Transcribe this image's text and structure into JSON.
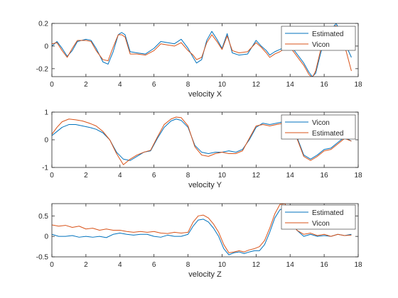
{
  "figure": {
    "background": "#ffffff"
  },
  "chart_data": [
    {
      "type": "line",
      "title": "",
      "xlabel": "velocity X",
      "ylabel": "",
      "xlim": [
        0,
        18
      ],
      "ylim": [
        -0.27,
        0.2
      ],
      "xticks": [
        0,
        2,
        4,
        6,
        8,
        10,
        12,
        14,
        16,
        18
      ],
      "yticks": [
        -0.2,
        0,
        0.2
      ],
      "ytick_labels": [
        "-0.2",
        "0",
        "0.2"
      ],
      "grid": false,
      "legend": {
        "position": "top-right",
        "entries": [
          "Estimated",
          "Vicon"
        ]
      },
      "series": [
        {
          "name": "Estimated",
          "color": "#0072BD",
          "x": [
            0,
            0.3,
            0.6,
            0.9,
            1.2,
            1.5,
            2,
            2.3,
            2.6,
            3.0,
            3.3,
            3.6,
            3.9,
            4.1,
            4.3,
            4.6,
            5,
            5.5,
            6,
            6.4,
            6.8,
            7.2,
            7.6,
            8.0,
            8.3,
            8.5,
            8.8,
            9.1,
            9.4,
            9.7,
            10.0,
            10.3,
            10.6,
            11,
            11.5,
            12,
            12.3,
            12.6,
            12.8,
            13.1,
            13.4,
            13.8,
            14.1,
            14.4,
            14.8,
            15.1,
            15.3,
            15.5,
            15.8,
            16.1,
            16.4,
            16.7,
            17.0,
            17.3,
            17.6
          ],
          "y": [
            0.0,
            0.04,
            -0.02,
            -0.09,
            -0.04,
            0.04,
            0.06,
            0.05,
            -0.02,
            -0.14,
            -0.16,
            -0.05,
            0.1,
            0.12,
            0.1,
            -0.05,
            -0.06,
            -0.07,
            -0.02,
            0.04,
            0.03,
            0.02,
            0.06,
            -0.02,
            -0.1,
            -0.15,
            -0.12,
            0.05,
            0.13,
            0.06,
            -0.02,
            0.11,
            -0.06,
            -0.08,
            -0.07,
            0.05,
            0.0,
            -0.04,
            -0.08,
            -0.05,
            -0.03,
            0.0,
            -0.01,
            -0.07,
            -0.15,
            -0.23,
            -0.27,
            -0.24,
            -0.06,
            0.08,
            0.14,
            0.2,
            0.12,
            0.0,
            -0.1
          ]
        },
        {
          "name": "Vicon",
          "color": "#D95319",
          "x": [
            0,
            0.3,
            0.6,
            0.9,
            1.2,
            1.5,
            2,
            2.3,
            2.6,
            3.0,
            3.3,
            3.6,
            3.9,
            4.1,
            4.3,
            4.6,
            5,
            5.5,
            6,
            6.4,
            6.8,
            7.2,
            7.6,
            8.0,
            8.3,
            8.5,
            8.8,
            9.1,
            9.4,
            9.7,
            10.0,
            10.3,
            10.6,
            11,
            11.5,
            12,
            12.3,
            12.6,
            12.8,
            13.1,
            13.4,
            13.8,
            14.1,
            14.4,
            14.8,
            15.1,
            15.3,
            15.5,
            15.8,
            16.1,
            16.4,
            16.7,
            17.0,
            17.3,
            17.6
          ],
          "y": [
            0.02,
            0.03,
            -0.04,
            -0.1,
            -0.02,
            0.05,
            0.05,
            0.04,
            -0.04,
            -0.12,
            -0.13,
            -0.01,
            0.1,
            0.1,
            0.08,
            -0.07,
            -0.07,
            -0.08,
            -0.04,
            0.02,
            0.01,
            0.0,
            0.03,
            -0.04,
            -0.08,
            -0.12,
            -0.1,
            0.03,
            0.1,
            0.04,
            -0.03,
            0.09,
            -0.04,
            -0.06,
            -0.05,
            0.03,
            -0.01,
            -0.06,
            -0.1,
            -0.07,
            -0.05,
            -0.01,
            -0.03,
            -0.09,
            -0.17,
            -0.25,
            -0.28,
            -0.22,
            -0.03,
            0.1,
            0.16,
            0.18,
            0.08,
            -0.05,
            -0.22
          ]
        }
      ]
    },
    {
      "type": "line",
      "title": "",
      "xlabel": "velocity Y",
      "ylabel": "",
      "xlim": [
        0,
        18
      ],
      "ylim": [
        -1,
        1
      ],
      "xticks": [
        0,
        2,
        4,
        6,
        8,
        10,
        12,
        14,
        16,
        18
      ],
      "yticks": [
        -1,
        0,
        1
      ],
      "ytick_labels": [
        "-1",
        "0",
        "1"
      ],
      "grid": false,
      "legend": {
        "position": "top-right",
        "entries": [
          "Vicon",
          "Estimated"
        ]
      },
      "series": [
        {
          "name": "Vicon",
          "color": "#0072BD",
          "x": [
            0,
            0.3,
            0.6,
            1.0,
            1.4,
            1.8,
            2.2,
            2.6,
            3.0,
            3.4,
            3.8,
            4.2,
            4.6,
            5.0,
            5.4,
            5.8,
            6.2,
            6.6,
            7.0,
            7.3,
            7.6,
            8.0,
            8.4,
            8.8,
            9.2,
            9.6,
            10.0,
            10.4,
            10.8,
            11.2,
            11.6,
            12.0,
            12.4,
            12.8,
            13.2,
            13.6,
            14.0,
            14.4,
            14.8,
            15.2,
            15.6,
            16.0,
            16.4,
            16.8,
            17.2,
            17.6
          ],
          "y": [
            0.15,
            0.3,
            0.45,
            0.55,
            0.55,
            0.5,
            0.45,
            0.38,
            0.25,
            0.0,
            -0.45,
            -0.7,
            -0.75,
            -0.6,
            -0.45,
            -0.4,
            0.05,
            0.45,
            0.68,
            0.75,
            0.7,
            0.45,
            -0.2,
            -0.45,
            -0.5,
            -0.45,
            -0.45,
            -0.4,
            -0.45,
            -0.35,
            0.0,
            0.45,
            0.6,
            0.55,
            0.6,
            0.65,
            0.55,
            0.1,
            -0.55,
            -0.7,
            -0.55,
            -0.35,
            -0.3,
            -0.1,
            0.1,
            -0.05
          ]
        },
        {
          "name": "Estimated",
          "color": "#D95319",
          "x": [
            0,
            0.3,
            0.6,
            1.0,
            1.4,
            1.8,
            2.2,
            2.6,
            3.0,
            3.4,
            3.8,
            4.2,
            4.6,
            5.0,
            5.4,
            5.8,
            6.2,
            6.6,
            7.0,
            7.3,
            7.6,
            8.0,
            8.4,
            8.8,
            9.2,
            9.6,
            10.0,
            10.4,
            10.8,
            11.2,
            11.6,
            12.0,
            12.4,
            12.8,
            13.2,
            13.6,
            14.0,
            14.4,
            14.8,
            15.2,
            15.6,
            16.0,
            16.4,
            16.8,
            17.2,
            17.6
          ],
          "y": [
            0.2,
            0.45,
            0.65,
            0.75,
            0.72,
            0.68,
            0.6,
            0.5,
            0.3,
            0.0,
            -0.5,
            -0.9,
            -0.7,
            -0.55,
            -0.45,
            -0.38,
            0.1,
            0.55,
            0.75,
            0.82,
            0.8,
            0.5,
            -0.25,
            -0.55,
            -0.6,
            -0.5,
            -0.45,
            -0.5,
            -0.5,
            -0.4,
            0.05,
            0.5,
            0.55,
            0.5,
            0.55,
            0.6,
            0.5,
            0.05,
            -0.6,
            -0.75,
            -0.6,
            -0.4,
            -0.35,
            -0.15,
            0.05,
            -0.05
          ]
        }
      ]
    },
    {
      "type": "line",
      "title": "",
      "xlabel": "velocity Z",
      "ylabel": "",
      "xlim": [
        0,
        18
      ],
      "ylim": [
        -0.5,
        0.8
      ],
      "xticks": [
        0,
        2,
        4,
        6,
        8,
        10,
        12,
        14,
        16,
        18
      ],
      "yticks": [
        -0.5,
        0,
        0.5
      ],
      "ytick_labels": [
        "-0.5",
        "0",
        "0.5"
      ],
      "grid": false,
      "legend": {
        "position": "top-right",
        "entries": [
          "Estimated",
          "Vicon"
        ]
      },
      "series": [
        {
          "name": "Estimated",
          "color": "#0072BD",
          "x": [
            0,
            0.4,
            0.8,
            1.2,
            1.6,
            2.0,
            2.4,
            2.8,
            3.2,
            3.6,
            4.0,
            4.4,
            4.8,
            5.2,
            5.6,
            6.0,
            6.4,
            6.8,
            7.2,
            7.6,
            8.0,
            8.3,
            8.6,
            8.9,
            9.2,
            9.5,
            9.8,
            10.1,
            10.4,
            10.7,
            11.0,
            11.3,
            11.6,
            11.9,
            12.2,
            12.5,
            12.8,
            13.1,
            13.4,
            13.7,
            14.0,
            14.4,
            14.8,
            15.2,
            15.6,
            16.0,
            16.4,
            16.8,
            17.2,
            17.6
          ],
          "y": [
            0.05,
            0.0,
            0.0,
            0.02,
            -0.02,
            0.0,
            -0.02,
            0.0,
            -0.03,
            0.05,
            0.08,
            0.05,
            0.03,
            0.05,
            0.05,
            0.0,
            -0.02,
            0.03,
            0.0,
            0.0,
            0.05,
            0.25,
            0.4,
            0.42,
            0.35,
            0.2,
            0.0,
            -0.3,
            -0.45,
            -0.4,
            -0.38,
            -0.42,
            -0.38,
            -0.35,
            -0.35,
            -0.2,
            0.1,
            0.45,
            0.65,
            0.7,
            0.4,
            0.15,
            0.0,
            0.05,
            0.0,
            0.02,
            0.0,
            0.05,
            0.02,
            0.05
          ]
        },
        {
          "name": "Vicon",
          "color": "#D95319",
          "x": [
            0,
            0.4,
            0.8,
            1.2,
            1.6,
            2.0,
            2.4,
            2.8,
            3.2,
            3.6,
            4.0,
            4.4,
            4.8,
            5.2,
            5.6,
            6.0,
            6.4,
            6.8,
            7.2,
            7.6,
            8.0,
            8.3,
            8.6,
            8.9,
            9.2,
            9.5,
            9.8,
            10.1,
            10.4,
            10.7,
            11.0,
            11.3,
            11.6,
            11.9,
            12.2,
            12.5,
            12.8,
            13.1,
            13.4,
            13.7,
            14.0,
            14.4,
            14.8,
            15.2,
            15.6,
            16.0,
            16.4,
            16.8,
            17.2,
            17.6
          ],
          "y": [
            0.28,
            0.25,
            0.27,
            0.22,
            0.25,
            0.18,
            0.2,
            0.15,
            0.18,
            0.15,
            0.15,
            0.12,
            0.1,
            0.12,
            0.1,
            0.12,
            0.08,
            0.07,
            0.1,
            0.08,
            0.1,
            0.35,
            0.5,
            0.52,
            0.45,
            0.3,
            0.1,
            -0.2,
            -0.4,
            -0.38,
            -0.35,
            -0.38,
            -0.33,
            -0.3,
            -0.25,
            -0.1,
            0.2,
            0.55,
            0.78,
            0.8,
            0.45,
            0.15,
            0.05,
            0.08,
            0.02,
            0.05,
            0.0,
            0.05,
            0.02,
            0.03
          ]
        }
      ]
    }
  ]
}
